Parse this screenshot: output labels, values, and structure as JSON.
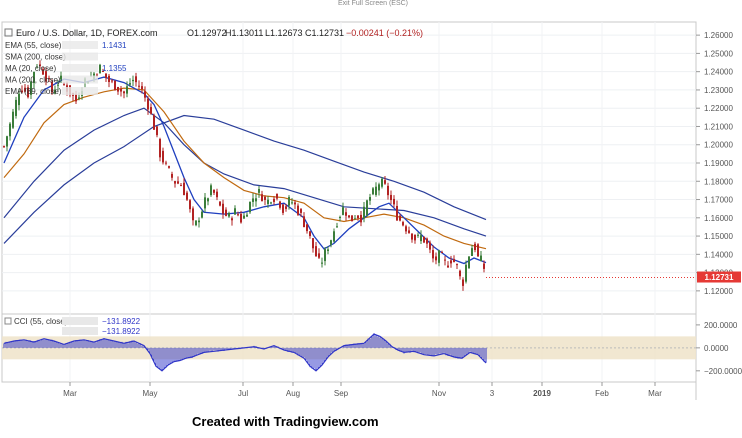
{
  "window": {
    "top_hint": "Exit Full Screen (ESC)",
    "credit": "Created with Tradingview.com"
  },
  "header": {
    "title": "Euro / U.S. Dollar, 1D, FOREX.com",
    "open": "O1.12972",
    "high": "H1.13011",
    "low": "L1.12673",
    "close": "C1.12731",
    "change": "−0.00241 (−0.21%)"
  },
  "legend": [
    {
      "label": "EMA (55, close)",
      "value": "1.1431",
      "color": "#1f3fbf"
    },
    {
      "label": "SMA (200, close)",
      "value": "",
      "color": "#1f3fbf"
    },
    {
      "label": "MA (20, close)",
      "value": "1.1355",
      "color": "#1f3fbf"
    },
    {
      "label": "MA (200, close)",
      "value": "",
      "color": "#1f3fbf"
    },
    {
      "label": "EMA (89, close)",
      "value": "",
      "color": "#1f3fbf"
    }
  ],
  "oscillator": {
    "label": "CCI (55, close)",
    "value1": "−131.8922",
    "value2": "−131.8922",
    "ticks": [
      "200.0000",
      "0.0000",
      "−200.0000"
    ]
  },
  "colors": {
    "up": "#3a7d3a",
    "down": "#b22222",
    "ma_fast": "#1f3fbf",
    "ma_mid": "#c06a10",
    "ma_slow": "#2a3e9a",
    "price_badge": "#e53935",
    "cci": "#2f35c8",
    "band": "#f0e4cc"
  },
  "price_badge": "1.12731",
  "chart_data": {
    "type": "candlestick",
    "x_ticks": [
      "Mar",
      "May",
      "Jul",
      "Aug",
      "Sep",
      "Nov",
      "3",
      "2019",
      "Feb",
      "Mar"
    ],
    "y_ticks": [
      "1.26000",
      "1.25000",
      "1.24000",
      "1.23000",
      "1.22000",
      "1.21000",
      "1.20000",
      "1.19000",
      "1.18000",
      "1.17000",
      "1.16000",
      "1.15000",
      "1.14000",
      "1.13000",
      "1.12000"
    ],
    "ylim": [
      1.115,
      1.265
    ],
    "last_close": 1.12731,
    "close_path": [
      [
        0,
        1.199
      ],
      [
        8,
        1.215
      ],
      [
        16,
        1.232
      ],
      [
        24,
        1.228
      ],
      [
        32,
        1.245
      ],
      [
        40,
        1.24
      ],
      [
        48,
        1.229
      ],
      [
        56,
        1.236
      ],
      [
        64,
        1.23
      ],
      [
        72,
        1.224
      ],
      [
        80,
        1.235
      ],
      [
        88,
        1.238
      ],
      [
        96,
        1.242
      ],
      [
        104,
        1.235
      ],
      [
        112,
        1.232
      ],
      [
        120,
        1.228
      ],
      [
        128,
        1.236
      ],
      [
        136,
        1.232
      ],
      [
        144,
        1.222
      ],
      [
        150,
        1.21
      ],
      [
        156,
        1.195
      ],
      [
        162,
        1.188
      ],
      [
        170,
        1.18
      ],
      [
        178,
        1.178
      ],
      [
        184,
        1.168
      ],
      [
        190,
        1.154
      ],
      [
        196,
        1.162
      ],
      [
        202,
        1.17
      ],
      [
        208,
        1.176
      ],
      [
        214,
        1.168
      ],
      [
        220,
        1.162
      ],
      [
        226,
        1.16
      ],
      [
        232,
        1.164
      ],
      [
        238,
        1.158
      ],
      [
        244,
        1.166
      ],
      [
        250,
        1.172
      ],
      [
        256,
        1.174
      ],
      [
        262,
        1.168
      ],
      [
        268,
        1.172
      ],
      [
        274,
        1.17
      ],
      [
        280,
        1.164
      ],
      [
        286,
        1.17
      ],
      [
        292,
        1.166
      ],
      [
        298,
        1.16
      ],
      [
        304,
        1.152
      ],
      [
        310,
        1.142
      ],
      [
        316,
        1.134
      ],
      [
        322,
        1.142
      ],
      [
        328,
        1.15
      ],
      [
        334,
        1.16
      ],
      [
        340,
        1.166
      ],
      [
        346,
        1.158
      ],
      [
        352,
        1.162
      ],
      [
        358,
        1.16
      ],
      [
        364,
        1.17
      ],
      [
        370,
        1.174
      ],
      [
        376,
        1.18
      ],
      [
        382,
        1.176
      ],
      [
        388,
        1.168
      ],
      [
        394,
        1.16
      ],
      [
        400,
        1.156
      ],
      [
        406,
        1.152
      ],
      [
        412,
        1.148
      ],
      [
        418,
        1.15
      ],
      [
        424,
        1.144
      ],
      [
        430,
        1.136
      ],
      [
        436,
        1.14
      ],
      [
        442,
        1.134
      ],
      [
        448,
        1.138
      ],
      [
        454,
        1.132
      ],
      [
        458,
        1.122
      ],
      [
        462,
        1.134
      ],
      [
        466,
        1.142
      ],
      [
        470,
        1.146
      ],
      [
        474,
        1.138
      ],
      [
        478,
        1.136
      ],
      [
        482,
        1.129
      ]
    ],
    "ma20": [
      [
        0,
        1.19
      ],
      [
        20,
        1.215
      ],
      [
        40,
        1.23
      ],
      [
        60,
        1.236
      ],
      [
        80,
        1.234
      ],
      [
        100,
        1.237
      ],
      [
        120,
        1.234
      ],
      [
        140,
        1.228
      ],
      [
        150,
        1.222
      ],
      [
        160,
        1.21
      ],
      [
        170,
        1.196
      ],
      [
        180,
        1.182
      ],
      [
        190,
        1.17
      ],
      [
        200,
        1.163
      ],
      [
        220,
        1.162
      ],
      [
        240,
        1.163
      ],
      [
        260,
        1.166
      ],
      [
        280,
        1.168
      ],
      [
        300,
        1.16
      ],
      [
        310,
        1.15
      ],
      [
        320,
        1.143
      ],
      [
        330,
        1.146
      ],
      [
        345,
        1.154
      ],
      [
        360,
        1.16
      ],
      [
        375,
        1.166
      ],
      [
        385,
        1.168
      ],
      [
        400,
        1.16
      ],
      [
        415,
        1.152
      ],
      [
        430,
        1.144
      ],
      [
        445,
        1.138
      ],
      [
        460,
        1.135
      ],
      [
        470,
        1.138
      ],
      [
        482,
        1.1355
      ]
    ],
    "ema55": [
      [
        0,
        1.182
      ],
      [
        20,
        1.195
      ],
      [
        40,
        1.212
      ],
      [
        60,
        1.222
      ],
      [
        80,
        1.226
      ],
      [
        100,
        1.229
      ],
      [
        120,
        1.231
      ],
      [
        140,
        1.23
      ],
      [
        160,
        1.218
      ],
      [
        180,
        1.202
      ],
      [
        200,
        1.19
      ],
      [
        220,
        1.182
      ],
      [
        240,
        1.175
      ],
      [
        260,
        1.172
      ],
      [
        280,
        1.171
      ],
      [
        300,
        1.168
      ],
      [
        320,
        1.16
      ],
      [
        340,
        1.158
      ],
      [
        360,
        1.16
      ],
      [
        380,
        1.162
      ],
      [
        400,
        1.16
      ],
      [
        420,
        1.156
      ],
      [
        440,
        1.15
      ],
      [
        460,
        1.146
      ],
      [
        482,
        1.1431
      ]
    ],
    "ma200": [
      [
        0,
        1.146
      ],
      [
        30,
        1.163
      ],
      [
        60,
        1.178
      ],
      [
        90,
        1.19
      ],
      [
        120,
        1.199
      ],
      [
        150,
        1.21
      ],
      [
        180,
        1.216
      ],
      [
        210,
        1.214
      ],
      [
        240,
        1.208
      ],
      [
        270,
        1.202
      ],
      [
        300,
        1.197
      ],
      [
        330,
        1.191
      ],
      [
        360,
        1.185
      ],
      [
        390,
        1.18
      ],
      [
        420,
        1.174
      ],
      [
        450,
        1.166
      ],
      [
        482,
        1.159
      ]
    ],
    "ema89": [
      [
        0,
        1.16
      ],
      [
        30,
        1.18
      ],
      [
        60,
        1.197
      ],
      [
        90,
        1.208
      ],
      [
        120,
        1.216
      ],
      [
        140,
        1.22
      ],
      [
        160,
        1.212
      ],
      [
        180,
        1.2
      ],
      [
        200,
        1.19
      ],
      [
        220,
        1.184
      ],
      [
        250,
        1.178
      ],
      [
        280,
        1.176
      ],
      [
        310,
        1.171
      ],
      [
        340,
        1.166
      ],
      [
        370,
        1.165
      ],
      [
        400,
        1.164
      ],
      [
        430,
        1.16
      ],
      [
        460,
        1.154
      ],
      [
        482,
        1.15
      ]
    ],
    "cci_ylim": [
      -280,
      260
    ],
    "cci_path": [
      [
        0,
        40
      ],
      [
        10,
        60
      ],
      [
        20,
        70
      ],
      [
        30,
        50
      ],
      [
        40,
        80
      ],
      [
        50,
        60
      ],
      [
        60,
        30
      ],
      [
        70,
        60
      ],
      [
        80,
        70
      ],
      [
        90,
        50
      ],
      [
        100,
        80
      ],
      [
        110,
        60
      ],
      [
        120,
        40
      ],
      [
        130,
        60
      ],
      [
        140,
        20
      ],
      [
        146,
        -50
      ],
      [
        152,
        -160
      ],
      [
        158,
        -200
      ],
      [
        164,
        -150
      ],
      [
        170,
        -120
      ],
      [
        176,
        -110
      ],
      [
        182,
        -90
      ],
      [
        188,
        -80
      ],
      [
        194,
        -60
      ],
      [
        200,
        -40
      ],
      [
        210,
        -30
      ],
      [
        220,
        -20
      ],
      [
        230,
        -10
      ],
      [
        240,
        0
      ],
      [
        250,
        10
      ],
      [
        260,
        -10
      ],
      [
        270,
        20
      ],
      [
        280,
        -20
      ],
      [
        290,
        -40
      ],
      [
        300,
        -90
      ],
      [
        306,
        -160
      ],
      [
        312,
        -200
      ],
      [
        318,
        -150
      ],
      [
        324,
        -80
      ],
      [
        330,
        -30
      ],
      [
        340,
        20
      ],
      [
        350,
        30
      ],
      [
        360,
        40
      ],
      [
        370,
        120
      ],
      [
        376,
        100
      ],
      [
        382,
        60
      ],
      [
        388,
        10
      ],
      [
        394,
        -20
      ],
      [
        400,
        -40
      ],
      [
        410,
        -30
      ],
      [
        420,
        -60
      ],
      [
        430,
        -70
      ],
      [
        440,
        -50
      ],
      [
        450,
        -80
      ],
      [
        458,
        -90
      ],
      [
        466,
        -40
      ],
      [
        474,
        -60
      ],
      [
        482,
        -132
      ]
    ]
  }
}
